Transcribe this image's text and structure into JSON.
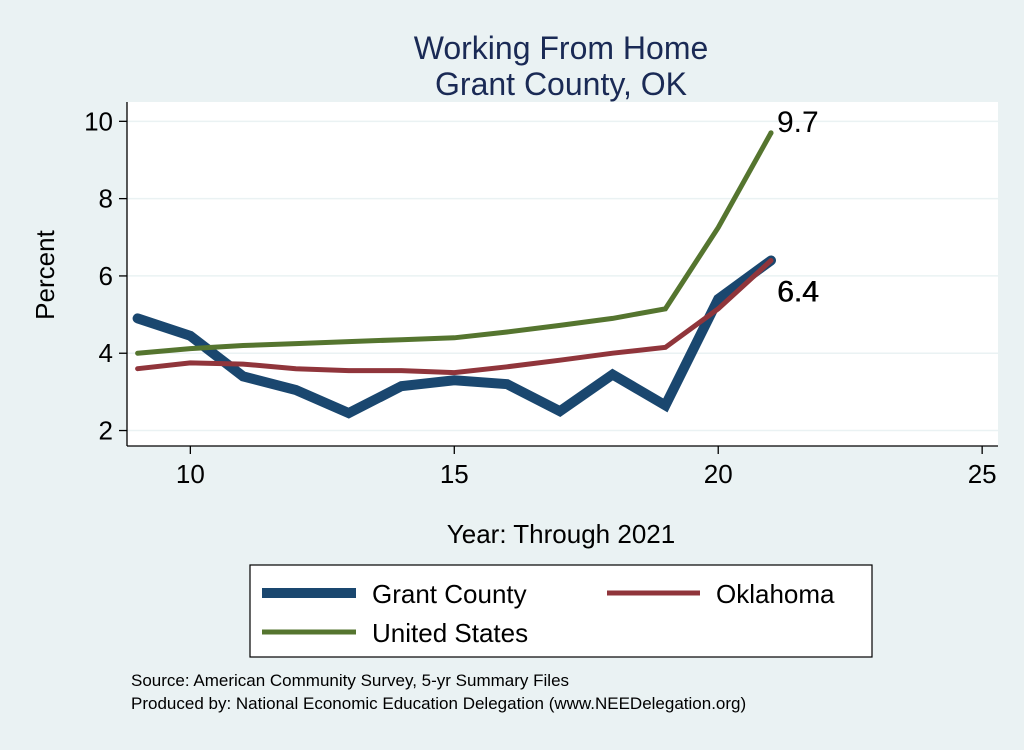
{
  "chart_data": {
    "type": "line",
    "title": "Working From Home",
    "subtitle": "Grant County, OK",
    "xlabel": "Year: Through 2021",
    "ylabel": "Percent",
    "xlim": [
      8.8,
      25.3
    ],
    "ylim": [
      1.6,
      10.5
    ],
    "xticks": [
      10,
      15,
      20,
      25
    ],
    "yticks": [
      2,
      4,
      6,
      8,
      10
    ],
    "grid": true,
    "legend_position": "bottom",
    "x": [
      9,
      10,
      11,
      12,
      13,
      14,
      15,
      16,
      17,
      18,
      19,
      20,
      21
    ],
    "series": [
      {
        "name": "Grant County",
        "color": "#1a476f",
        "values": [
          4.9,
          4.45,
          3.4,
          3.05,
          2.45,
          3.15,
          3.3,
          3.2,
          2.5,
          3.45,
          2.65,
          5.4,
          6.4
        ],
        "end_label": "6.4",
        "width": "thick"
      },
      {
        "name": "Oklahoma",
        "color": "#90353b",
        "values": [
          3.6,
          3.75,
          3.72,
          3.6,
          3.55,
          3.55,
          3.5,
          3.65,
          3.82,
          4.0,
          4.15,
          5.15,
          6.4
        ],
        "end_label": "6.4",
        "width": "medium"
      },
      {
        "name": "United States",
        "color": "#55752f",
        "values": [
          4.0,
          4.12,
          4.2,
          4.25,
          4.3,
          4.35,
          4.4,
          4.55,
          4.72,
          4.9,
          5.15,
          7.25,
          9.7
        ],
        "end_label": "9.7",
        "width": "medium"
      }
    ]
  },
  "footer": {
    "source": "Source: American Community Survey, 5-yr Summary Files",
    "producer": "Produced by: National Economic Education Delegation (www.NEEDelegation.org)"
  }
}
